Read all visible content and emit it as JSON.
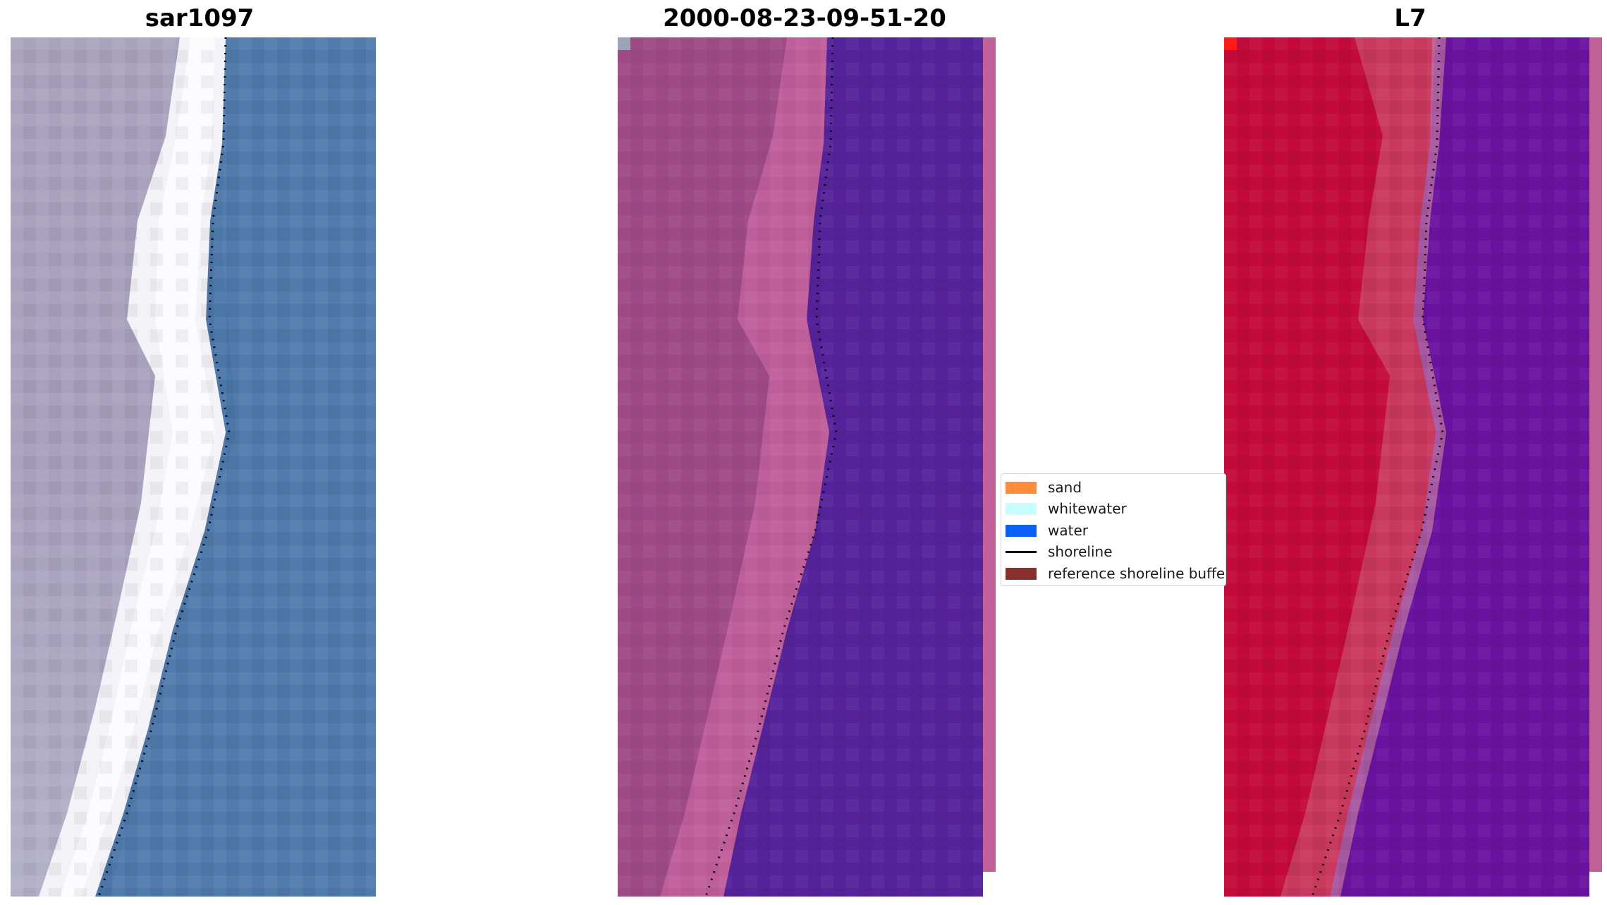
{
  "panels": [
    {
      "title": "sar1097"
    },
    {
      "title": "2000-08-23-09-51-20"
    },
    {
      "title": "L7"
    }
  ],
  "legend": {
    "items": [
      {
        "label": "sand",
        "kind": "patch",
        "color": "#ff8c3a"
      },
      {
        "label": "whitewater",
        "kind": "patch",
        "color": "#c8fdfd"
      },
      {
        "label": "water",
        "kind": "patch",
        "color": "#0a5ff5"
      },
      {
        "label": "shoreline",
        "kind": "line",
        "color": "#000000"
      },
      {
        "label": "reference shoreline buffer",
        "kind": "patch",
        "color": "#8b2e2e"
      }
    ]
  }
}
